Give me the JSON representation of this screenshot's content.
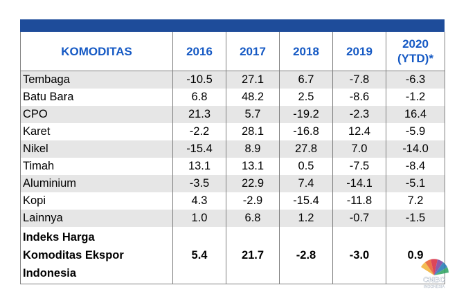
{
  "chart_data": {
    "type": "table",
    "header": {
      "komoditas": "KOMODITAS",
      "y2016": "2016",
      "y2017": "2017",
      "y2018": "2018",
      "y2019": "2019",
      "y2020_line1": "2020",
      "y2020_line2": "(YTD)*"
    },
    "rows": [
      {
        "name": "Tembaga",
        "v2016": "-10.5",
        "v2017": "27.1",
        "v2018": "6.7",
        "v2019": "-7.8",
        "v2020": "-6.3"
      },
      {
        "name": "Batu Bara",
        "v2016": "6.8",
        "v2017": "48.2",
        "v2018": "2.5",
        "v2019": "-8.6",
        "v2020": "-1.2"
      },
      {
        "name": "CPO",
        "v2016": "21.3",
        "v2017": "5.7",
        "v2018": "-19.2",
        "v2019": "-2.3",
        "v2020": "16.4"
      },
      {
        "name": "Karet",
        "v2016": "-2.2",
        "v2017": "28.1",
        "v2018": "-16.8",
        "v2019": "12.4",
        "v2020": "-5.9"
      },
      {
        "name": "Nikel",
        "v2016": "-15.4",
        "v2017": "8.9",
        "v2018": "27.8",
        "v2019": "7.0",
        "v2020": "-14.0"
      },
      {
        "name": "Timah",
        "v2016": "13.1",
        "v2017": "13.1",
        "v2018": "0.5",
        "v2019": "-7.5",
        "v2020": "-8.4"
      },
      {
        "name": "Aluminium",
        "v2016": "-3.5",
        "v2017": "22.9",
        "v2018": "7.4",
        "v2019": "-14.1",
        "v2020": "-5.1"
      },
      {
        "name": "Kopi",
        "v2016": "4.3",
        "v2017": "-2.9",
        "v2018": "-15.4",
        "v2019": "-11.8",
        "v2020": "7.2"
      },
      {
        "name": "Lainnya",
        "v2016": "1.0",
        "v2017": "6.8",
        "v2018": "1.2",
        "v2019": "-0.7",
        "v2020": "-1.5"
      }
    ],
    "summary": {
      "name_line1": "Indeks Harga",
      "name_line2": "Komoditas Ekspor",
      "name_line3": "Indonesia",
      "v2016": "5.4",
      "v2017": "21.7",
      "v2018": "-2.8",
      "v2019": "-3.0",
      "v2020": "0.9"
    }
  },
  "watermark": {
    "text": "CNBC INDONESIA",
    "colors": [
      "#f2b134",
      "#e85b2a",
      "#d7263d",
      "#7a3e9d",
      "#1f77b4",
      "#2ca25f"
    ]
  }
}
